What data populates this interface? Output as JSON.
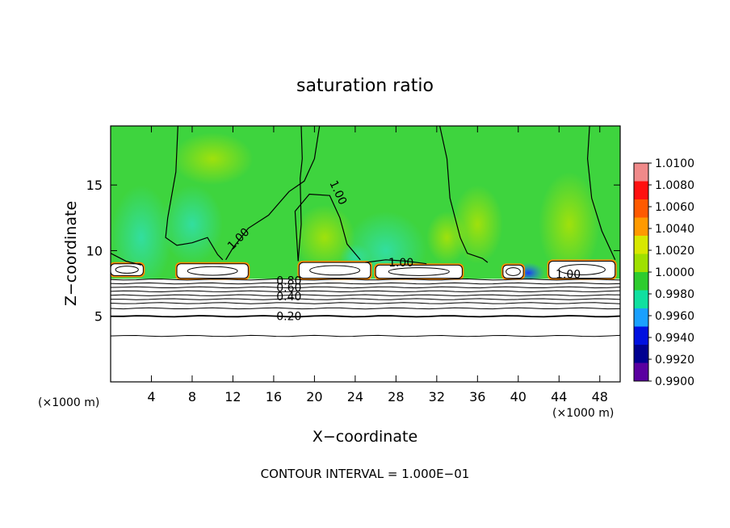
{
  "chart_data": {
    "type": "heatmap",
    "title": "saturation ratio",
    "xlabel": "X−coordinate",
    "ylabel": "Z−coordinate",
    "x_unit_label_left": "(×1000 m)",
    "x_unit_label_right": "(×1000 m)",
    "xlim": [
      0,
      50
    ],
    "ylim": [
      0,
      19.5
    ],
    "x_ticks": [
      4,
      8,
      12,
      16,
      20,
      24,
      28,
      32,
      36,
      40,
      44,
      48
    ],
    "y_ticks": [
      5,
      10,
      15
    ],
    "footer": "CONTOUR INTERVAL = 1.000E−01",
    "colorbar": {
      "levels": [
        "1.0100",
        "1.0080",
        "1.0060",
        "1.0040",
        "1.0020",
        "1.0000",
        "0.9980",
        "0.9960",
        "0.9940",
        "0.9920",
        "0.9900"
      ],
      "colors": [
        "#f08a8a",
        "#ff1010",
        "#ff5a00",
        "#ff9a00",
        "#d8e800",
        "#9fe000",
        "#2ecc2e",
        "#10e0a0",
        "#1aa0ff",
        "#0010e0",
        "#000090",
        "#5a00a0"
      ]
    },
    "contour_labels": [
      {
        "text": "1.00",
        "x": 12.8,
        "z": 10.7
      },
      {
        "text": "1.00",
        "x": 22.0,
        "z": 14.3
      },
      {
        "text": "1.00",
        "x": 28.5,
        "z": 8.8
      },
      {
        "text": "1.00",
        "x": 44.9,
        "z": 7.9
      },
      {
        "text": "0.80",
        "x": 17.5,
        "z": 7.4
      },
      {
        "text": "0.60",
        "x": 17.5,
        "z": 6.9
      },
      {
        "text": "0.40",
        "x": 17.5,
        "z": 6.2
      },
      {
        "text": "0.20",
        "x": 17.5,
        "z": 4.7
      }
    ],
    "horizontal_contours_z": [
      7.8,
      7.5,
      7.2,
      6.9,
      6.6,
      6.3,
      6.0,
      5.6,
      5.0,
      3.5
    ],
    "cloud_regions": [
      {
        "x0": 0,
        "x1": 3.2,
        "z0": 8.1,
        "z1": 9.0
      },
      {
        "x0": 6.5,
        "x1": 13.5,
        "z0": 7.9,
        "z1": 9.0
      },
      {
        "x0": 18.5,
        "x1": 25.5,
        "z0": 7.9,
        "z1": 9.1
      },
      {
        "x0": 26.0,
        "x1": 34.5,
        "z0": 7.9,
        "z1": 8.9
      },
      {
        "x0": 38.5,
        "x1": 40.5,
        "z0": 7.9,
        "z1": 8.9
      },
      {
        "x0": 43.0,
        "x1": 49.5,
        "z0": 7.9,
        "z1": 9.2
      }
    ]
  }
}
